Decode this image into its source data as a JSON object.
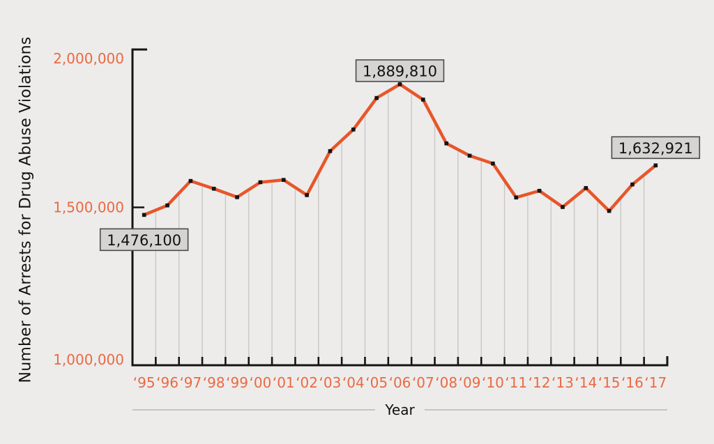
{
  "chart": {
    "y_axis_title": "Number of Arrests for Drug Abuse Violations",
    "x_axis_title": "Year"
  },
  "chart_data": {
    "type": "line",
    "title": "",
    "xlabel": "Year",
    "ylabel": "Number of Arrests for Drug Abuse Violations",
    "ylim": [
      1000000,
      2000000
    ],
    "grid": "vertical-droplines",
    "legend": "none",
    "categories": [
      "‘95",
      "‘96",
      "‘97",
      "‘98",
      "‘99",
      "‘00",
      "‘01",
      "‘02",
      "‘03",
      "‘04",
      "‘05",
      "‘06",
      "‘07",
      "‘08",
      "‘09",
      "‘10",
      "‘11",
      "‘12",
      "‘13",
      "‘14",
      "‘15",
      "‘16",
      "‘17"
    ],
    "years": [
      1995,
      1996,
      1997,
      1998,
      1999,
      2000,
      2001,
      2002,
      2003,
      2004,
      2005,
      2006,
      2007,
      2008,
      2009,
      2010,
      2011,
      2012,
      2013,
      2014,
      2015,
      2016,
      2017
    ],
    "values": [
      1476100,
      1506200,
      1583600,
      1559100,
      1532200,
      1579566,
      1586902,
      1538813,
      1678192,
      1746570,
      1846351,
      1889810,
      1841182,
      1702537,
      1663582,
      1638846,
      1531251,
      1552432,
      1501043,
      1561231,
      1488707,
      1572579,
      1632921
    ],
    "y_ticks": [
      {
        "label": "2,000,000",
        "value": 2000000,
        "label_offset": 13
      },
      {
        "label": "1,500,000",
        "value": 1500000,
        "label_offset": 0
      },
      {
        "label": "1,000,000",
        "value": 1000000,
        "label_offset": -8
      }
    ],
    "annotations": [
      {
        "year": 1995,
        "label": "1,476,100",
        "placement": "below",
        "gap": 20
      },
      {
        "year": 2006,
        "label": "1,889,810",
        "placement": "above",
        "gap": 4
      },
      {
        "year": 2017,
        "label": "1,632,921",
        "placement": "above",
        "gap": 10
      }
    ],
    "colors": {
      "background": "#edeceb",
      "line": "#e7562a",
      "marker": "#141414",
      "tick_text": "#ea6943",
      "grid": "#c8c7c5",
      "axis": "#141414",
      "annotation_bg": "#d5d4d2",
      "annotation_border": "#4a4a4a",
      "annotation_text": "#111111"
    }
  }
}
